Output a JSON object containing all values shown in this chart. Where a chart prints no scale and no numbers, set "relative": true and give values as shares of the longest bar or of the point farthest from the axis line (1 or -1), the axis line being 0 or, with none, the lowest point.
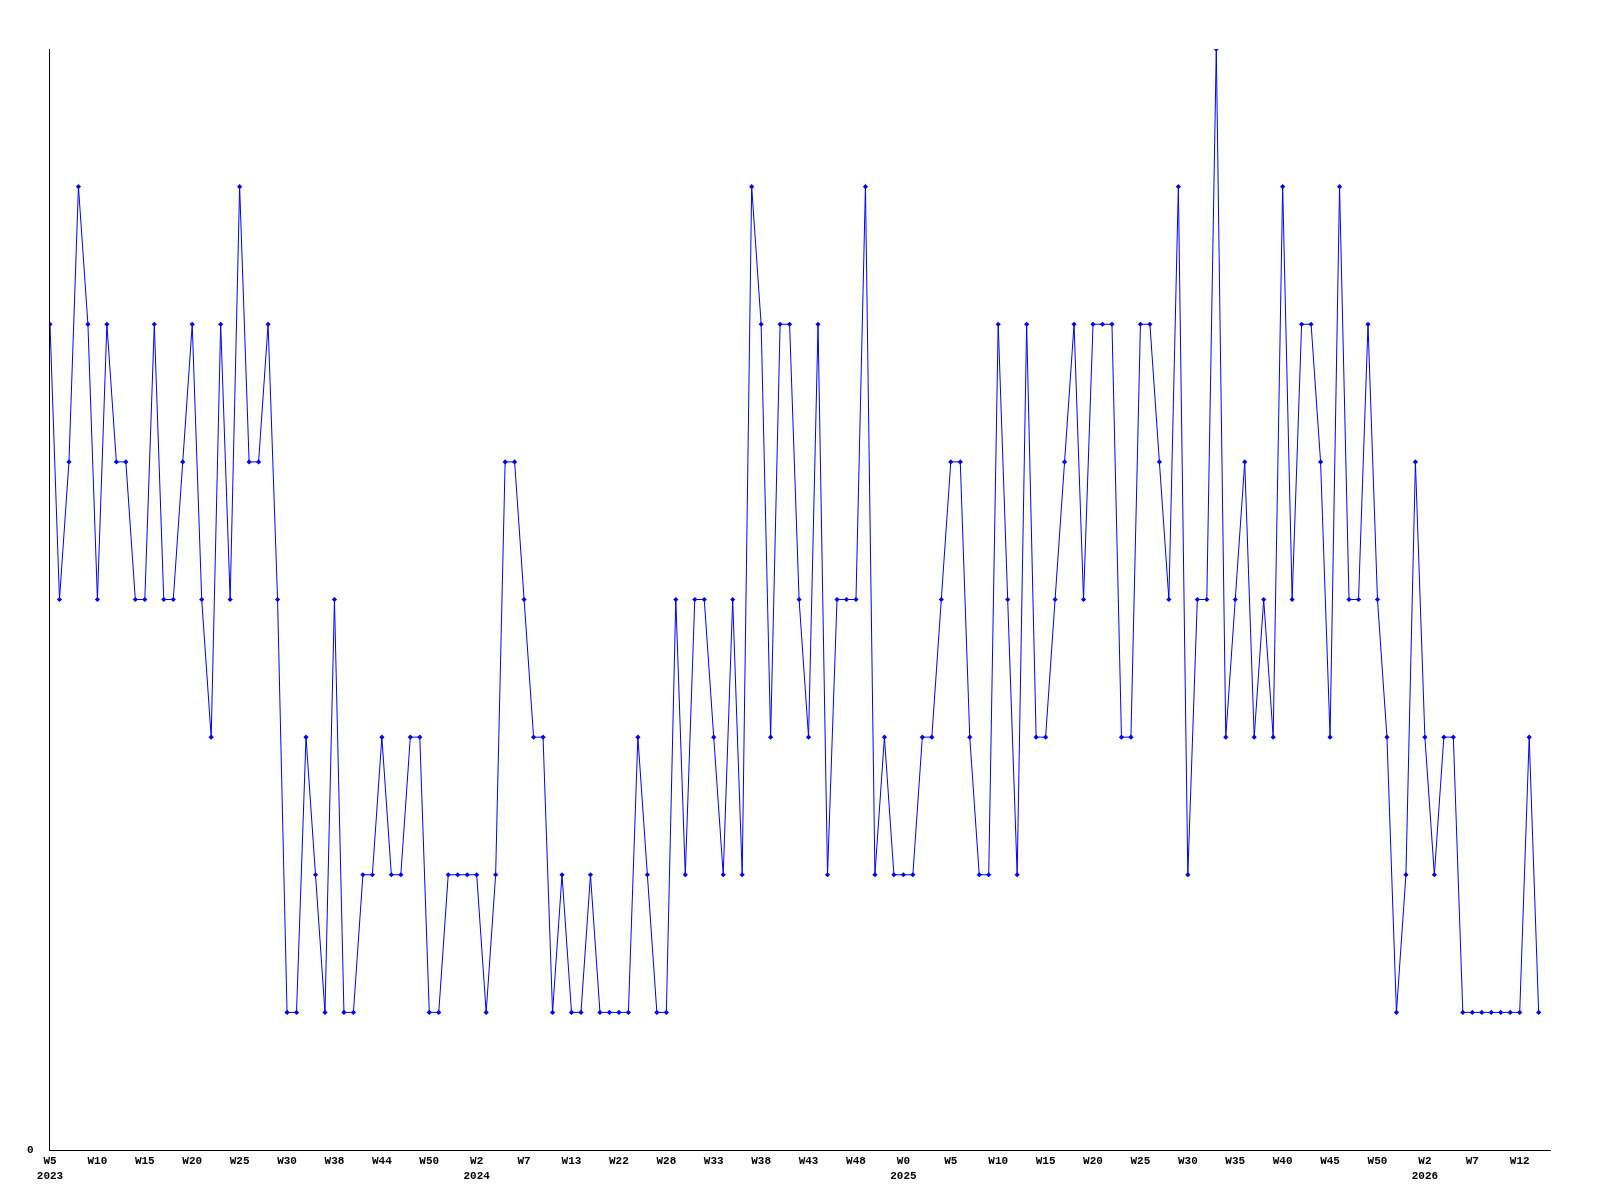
{
  "chart_data": {
    "type": "line",
    "relative": true,
    "color": "#0000ff",
    "marker": "diamond",
    "annotations": [
      "0"
    ],
    "categories": [
      "W5\n2023",
      null,
      null,
      null,
      null,
      "W10",
      null,
      null,
      null,
      null,
      "W15",
      null,
      null,
      null,
      null,
      "W20",
      null,
      null,
      null,
      null,
      "W25",
      null,
      null,
      null,
      null,
      "W30",
      null,
      null,
      null,
      null,
      "W38",
      null,
      null,
      null,
      null,
      "W44",
      null,
      null,
      null,
      null,
      "W50",
      null,
      null,
      null,
      null,
      "W2\n2024",
      null,
      null,
      null,
      null,
      "W7",
      null,
      null,
      null,
      null,
      "W13",
      null,
      null,
      null,
      null,
      "W22",
      null,
      null,
      null,
      null,
      "W28",
      null,
      null,
      null,
      null,
      "W33",
      null,
      null,
      null,
      null,
      "W38",
      null,
      null,
      null,
      null,
      "W43",
      null,
      null,
      null,
      null,
      "W48",
      null,
      null,
      null,
      null,
      "W0\n2025",
      null,
      null,
      null,
      null,
      "W5",
      null,
      null,
      null,
      null,
      "W10",
      null,
      null,
      null,
      null,
      "W15",
      null,
      null,
      null,
      null,
      "W20",
      null,
      null,
      null,
      null,
      "W25",
      null,
      null,
      null,
      null,
      "W30",
      null,
      null,
      null,
      null,
      "W35",
      null,
      null,
      null,
      null,
      "W40",
      null,
      null,
      null,
      null,
      "W45",
      null,
      null,
      null,
      null,
      "W50",
      null,
      null,
      null,
      null,
      "W2\n2026",
      null,
      null,
      null,
      null,
      "W7",
      null,
      null,
      null,
      null,
      "W12",
      null,
      null
    ],
    "values": [
      0.75,
      0.5,
      0.625,
      0.875,
      0.75,
      0.5,
      0.75,
      0.625,
      0.625,
      0.5,
      0.5,
      0.75,
      0.5,
      0.5,
      0.625,
      0.75,
      0.5,
      0.375,
      0.75,
      0.5,
      0.875,
      0.625,
      0.625,
      0.75,
      0.5,
      0.125,
      0.125,
      0.375,
      0.25,
      0.125,
      0.5,
      0.125,
      0.125,
      0.25,
      0.25,
      0.375,
      0.25,
      0.25,
      0.375,
      0.375,
      0.125,
      0.125,
      0.25,
      0.25,
      0.25,
      0.25,
      0.125,
      0.25,
      0.625,
      0.625,
      0.5,
      0.375,
      0.375,
      0.125,
      0.25,
      0.125,
      0.125,
      0.25,
      0.125,
      0.125,
      0.125,
      0.125,
      0.375,
      0.25,
      0.125,
      0.125,
      0.5,
      0.25,
      0.5,
      0.5,
      0.375,
      0.25,
      0.5,
      0.25,
      0.875,
      0.75,
      0.375,
      0.75,
      0.75,
      0.5,
      0.375,
      0.75,
      0.25,
      0.5,
      0.5,
      0.5,
      0.875,
      0.25,
      0.375,
      0.25,
      0.25,
      0.25,
      0.375,
      0.375,
      0.5,
      0.625,
      0.625,
      0.375,
      0.25,
      0.25,
      0.75,
      0.5,
      0.25,
      0.75,
      0.375,
      0.375,
      0.5,
      0.625,
      0.75,
      0.5,
      0.75,
      0.75,
      0.75,
      0.375,
      0.375,
      0.75,
      0.75,
      0.625,
      0.5,
      0.875,
      0.25,
      0.5,
      0.5,
      1,
      0.375,
      0.5,
      0.625,
      0.375,
      0.5,
      0.375,
      0.875,
      0.5,
      0.75,
      0.75,
      0.625,
      0.375,
      0.875,
      0.5,
      0.5,
      0.75,
      0.5,
      0.375,
      0.125,
      0.25,
      0.625,
      0.375,
      0.25,
      0.375,
      0.375,
      0.125,
      0.125,
      0.125,
      0.125,
      0.125,
      0.125,
      0.125,
      0.375,
      0.125
    ]
  }
}
